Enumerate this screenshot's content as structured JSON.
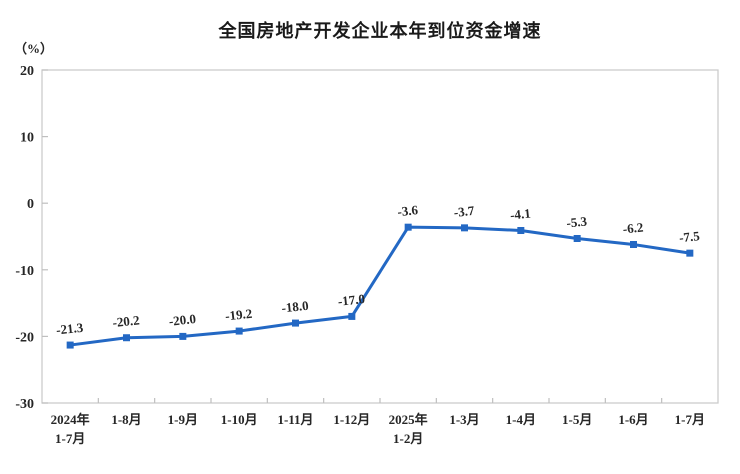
{
  "header": {
    "title": "全国房地产开发企业本年到位资金增速",
    "unit_label": "（%）"
  },
  "chart_data": {
    "type": "line",
    "title": "全国房地产开发企业本年到位资金增速",
    "ylabel": "（%）",
    "categories": [
      "2024年\n1-7月",
      "1-8月",
      "1-9月",
      "1-10月",
      "1-11月",
      "1-12月",
      "2025年\n1-2月",
      "1-3月",
      "1-4月",
      "1-5月",
      "1-6月",
      "1-7月"
    ],
    "values": [
      -21.3,
      -20.2,
      -20.0,
      -19.2,
      -18.0,
      -17.0,
      -3.6,
      -3.7,
      -4.1,
      -5.3,
      -6.2,
      -7.5
    ],
    "data_labels": [
      "-21.3",
      "-20.2",
      "-20.0",
      "-19.2",
      "-18.0",
      "-17.0",
      "-3.6",
      "-3.7",
      "-4.1",
      "-5.3",
      "-6.2",
      "-7.5"
    ],
    "ylim": [
      -30,
      20
    ],
    "yticks": [
      20,
      10,
      0,
      -10,
      -20,
      -30
    ],
    "grid": false,
    "legend_position": "none",
    "line_color": "#2368C4",
    "marker": "square",
    "axis_color": "#cccccc",
    "tick_color": "#bfbfbf",
    "label_color": "#262626"
  }
}
